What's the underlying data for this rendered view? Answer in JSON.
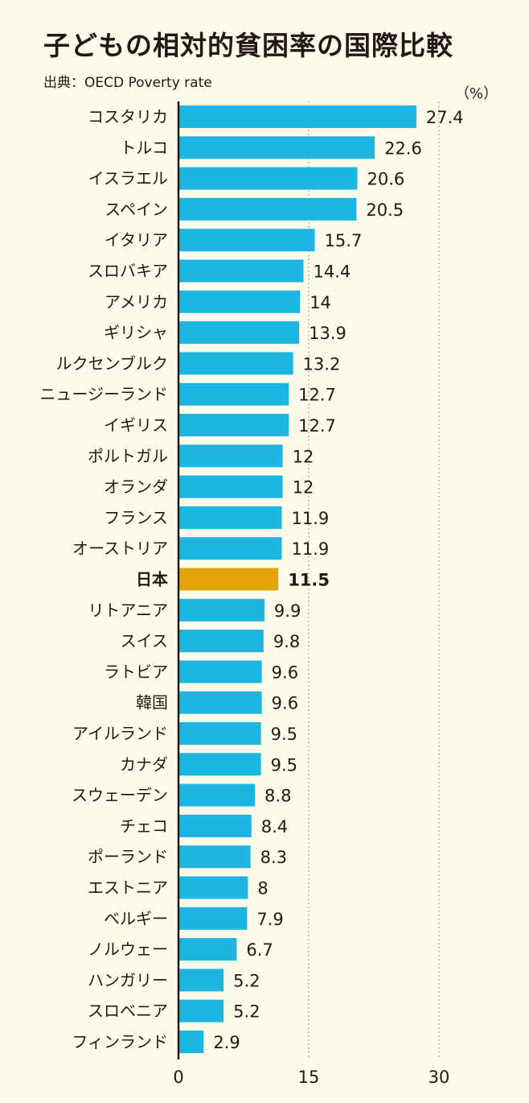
{
  "chart_data": {
    "type": "bar",
    "orientation": "horizontal",
    "title": "子どもの相対的貧困率の国際比較",
    "subtitle": "出典：OECD Poverty rate",
    "unit": "（%）",
    "categories": [
      "コスタリカ",
      "トルコ",
      "イスラエル",
      "スペイン",
      "イタリア",
      "スロバキア",
      "アメリカ",
      "ギリシャ",
      "ルクセンブルク",
      "ニュージーランド",
      "イギリス",
      "ポルトガル",
      "オランダ",
      "フランス",
      "オーストリア",
      "日本",
      "リトアニア",
      "スイス",
      "ラトビア",
      "韓国",
      "アイルランド",
      "カナダ",
      "スウェーデン",
      "チェコ",
      "ポーランド",
      "エストニア",
      "ベルギー",
      "ノルウェー",
      "ハンガリー",
      "スロベニア",
      "フィンランド"
    ],
    "values": [
      27.4,
      22.6,
      20.6,
      20.5,
      15.7,
      14.4,
      14,
      13.9,
      13.2,
      12.7,
      12.7,
      12,
      12,
      11.9,
      11.9,
      11.5,
      9.9,
      9.8,
      9.6,
      9.6,
      9.5,
      9.5,
      8.8,
      8.4,
      8.3,
      8,
      7.9,
      6.7,
      5.2,
      5.2,
      2.9
    ],
    "value_labels": [
      "27.4",
      "22.6",
      "20.6",
      "20.5",
      "15.7",
      "14.4",
      "14",
      "13.9",
      "13.2",
      "12.7",
      "12.7",
      "12",
      "12",
      "11.9",
      "11.9",
      "11.5",
      "9.9",
      "9.8",
      "9.6",
      "9.6",
      "9.5",
      "9.5",
      "8.8",
      "8.4",
      "8.3",
      "8",
      "7.9",
      "6.7",
      "5.2",
      "5.2",
      "2.9"
    ],
    "highlight": "日本",
    "xlim": [
      0,
      30
    ],
    "xticks": [
      "0",
      "15",
      "30"
    ],
    "grid": true,
    "colors": {
      "bar": "#1fb5e2",
      "highlight": "#e3a40a",
      "grid": "#a9a9a0",
      "axis": "#231815"
    }
  }
}
